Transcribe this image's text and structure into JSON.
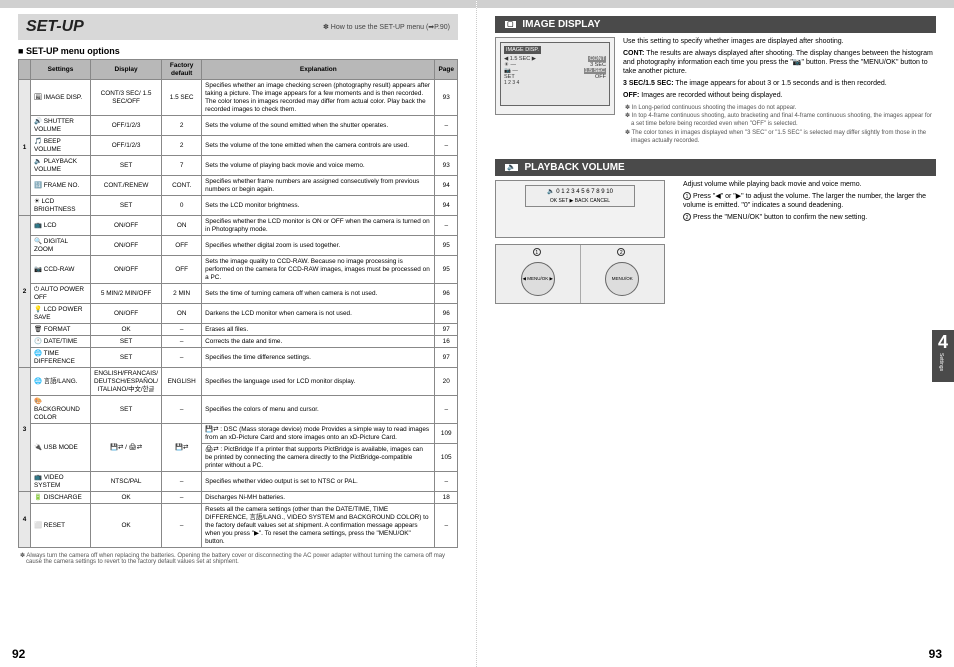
{
  "header": {
    "title": "SET-UP",
    "note": "✽ How to use the SET-UP menu (➡P.90)"
  },
  "subheading": "SET-UP menu options",
  "table": {
    "columns": [
      "",
      "Settings",
      "Display",
      "Factory default",
      "Explanation",
      "Page"
    ],
    "groups": [
      {
        "num": "1",
        "rows": [
          {
            "setting": "🖼 IMAGE DISP.",
            "display": "CONT/3 SEC/ 1.5 SEC/OFF",
            "fdef": "1.5 SEC",
            "expl": "Specifies whether an image checking screen (photography result) appears after taking a picture.\nThe image appears for a few moments and is then recorded. The color tones in images recorded may differ from actual color. Play back the recorded images to check them.",
            "page": "93"
          },
          {
            "setting": "🔊 SHUTTER VOLUME",
            "display": "OFF/1/2/3",
            "fdef": "2",
            "expl": "Sets the volume of the sound emitted when the shutter operates.",
            "page": "–"
          },
          {
            "setting": "🎵 BEEP VOLUME",
            "display": "OFF/1/2/3",
            "fdef": "2",
            "expl": "Sets the volume of the tone emitted when the camera controls are used.",
            "page": "–"
          },
          {
            "setting": "🔈 PLAYBACK VOLUME",
            "display": "SET",
            "fdef": "7",
            "expl": "Sets the volume of playing back movie and voice memo.",
            "page": "93"
          },
          {
            "setting": "🔢 FRAME NO.",
            "display": "CONT./RENEW",
            "fdef": "CONT.",
            "expl": "Specifies whether frame numbers are assigned consecutively from previous numbers or begin again.",
            "page": "94"
          },
          {
            "setting": "☀ LCD BRIGHTNESS",
            "display": "SET",
            "fdef": "0",
            "expl": "Sets the LCD monitor brightness.",
            "page": "94"
          }
        ]
      },
      {
        "num": "2",
        "rows": [
          {
            "setting": "📺 LCD",
            "display": "ON/OFF",
            "fdef": "ON",
            "expl": "Specifies whether the LCD monitor is ON or OFF when the camera is turned on in Photography mode.",
            "page": "–"
          },
          {
            "setting": "🔍 DIGITAL ZOOM",
            "display": "ON/OFF",
            "fdef": "OFF",
            "expl": "Specifies whether digital zoom is used together.",
            "page": "95"
          },
          {
            "setting": "📷 CCD-RAW",
            "display": "ON/OFF",
            "fdef": "OFF",
            "expl": "Sets the image quality to CCD-RAW. Because no image processing is performed on the camera for CCD-RAW images, images must be processed on a PC.",
            "page": "95"
          },
          {
            "setting": "⏻ AUTO POWER OFF",
            "display": "5 MIN/2 MIN/OFF",
            "fdef": "2 MIN",
            "expl": "Sets the time of turning camera off when camera is not used.",
            "page": "96"
          },
          {
            "setting": "💡 LCD POWER SAVE",
            "display": "ON/OFF",
            "fdef": "ON",
            "expl": "Darkens the LCD monitor when camera is not used.",
            "page": "96"
          },
          {
            "setting": "🗑 FORMAT",
            "display": "OK",
            "fdef": "–",
            "expl": "Erases all files.",
            "page": "97"
          },
          {
            "setting": "🕐 DATE/TIME",
            "display": "SET",
            "fdef": "–",
            "expl": "Corrects the date and time.",
            "page": "16"
          },
          {
            "setting": "🌐 TIME DIFFERENCE",
            "display": "SET",
            "fdef": "–",
            "expl": "Specifies the time difference settings.",
            "page": "97"
          }
        ]
      },
      {
        "num": "3",
        "rows": [
          {
            "setting": "🌐 言語/LANG.",
            "display": "ENGLISH/FRANCAIS/ DEUTSCH/ESPAÑOL/ ITALIANO/中文/한글",
            "fdef": "ENGLISH",
            "expl": "Specifies the language used for LCD monitor display.",
            "page": "20"
          },
          {
            "setting": "🎨 BACKGROUND COLOR",
            "display": "SET",
            "fdef": "–",
            "expl": "Specifies the colors of menu and cursor.",
            "page": "–"
          },
          {
            "setting": "🔌 USB MODE",
            "display": "💾⇄ / 🖨⇄",
            "fdef": "💾⇄",
            "expl": "💾⇄ : DSC (Mass storage device) mode\nProvides a simple way to read images from an xD-Picture Card and store images onto an xD-Picture Card.",
            "page": "109",
            "expl2": "🖨⇄ : PictBridge\nIf a printer that supports PictBridge is available, images can be printed by connecting the camera directly to the PictBridge-compatible printer without a PC.",
            "page2": "105"
          },
          {
            "setting": "📺 VIDEO SYSTEM",
            "display": "NTSC/PAL",
            "fdef": "–",
            "expl": "Specifies whether video output is set to NTSC or PAL.",
            "page": "–"
          }
        ]
      },
      {
        "num": "4",
        "rows": [
          {
            "setting": "🔋 DISCHARGE",
            "display": "OK",
            "fdef": "–",
            "expl": "Discharges Ni-MH batteries.",
            "page": "18"
          },
          {
            "setting": "⬜ RESET",
            "display": "OK",
            "fdef": "–",
            "expl": "Resets all the camera settings (other than the DATE/TIME, TIME DIFFERENCE, 言語/LANG., VIDEO SYSTEM and BACKGROUND COLOR) to the factory default values set at shipment. A confirmation message appears when you press \"▶\". To reset the camera settings, press the \"MENU/OK\" button.",
            "page": "–"
          }
        ]
      }
    ]
  },
  "footnote": "✽ Always turn the camera off when replacing the batteries. Opening the battery cover or disconnecting the AC power adapter without turning the camera off may cause the camera settings to revert to the factory default values set at shipment.",
  "pageLeft": "92",
  "pageRight": "93",
  "imageDisplay": {
    "title": "IMAGE DISPLAY",
    "lcd": {
      "header": "IMAGE DISP.",
      "opts": [
        "CONT",
        "3 SEC",
        "1.5 SEC",
        "OFF"
      ],
      "menu": "1  2  3  4",
      "set": "SET"
    },
    "intro": "Use this setting to specify whether images are displayed after shooting.",
    "cont_l": "CONT:",
    "cont": "The results are always displayed after shooting. The display changes between the histogram and photography information each time you press the \"📷\" button. Press the \"MENU/OK\" button to take another picture.",
    "sec_l": "3 SEC/1.5 SEC:",
    "sec": "The image appears for about 3 or 1.5 seconds and is then recorded.",
    "off_l": "OFF:",
    "off": "Images are recorded without being displayed.",
    "notes": [
      "✽ In Long-period continuous shooting the images do not appear.",
      "✽ In top 4-frame continuous shooting, auto bracketing and final 4-frame continuous shooting, the images appear for a set time before being recorded even when \"OFF\" is selected.",
      "✽ The color tones in images displayed when \"3 SEC\" or \"1.5 SEC\" is selected may differ slightly from those in the images actually recorded."
    ]
  },
  "playback": {
    "title": "PLAYBACK VOLUME",
    "scale": "0 1 2 3 4 5 6 7 8 9 10",
    "scaleHint": "SET ▶ BACK",
    "intro": "Adjust volume while playing back movie and voice memo.",
    "step1": "Press \"◀\" or \"▶\" to adjust the volume. The larger the number, the larger the volume is emitted. \"0\" indicates a sound deadening.",
    "step2": "Press the \"MENU/OK\" button to confirm the new setting."
  },
  "sideTab": {
    "num": "4",
    "label": "Settings"
  }
}
